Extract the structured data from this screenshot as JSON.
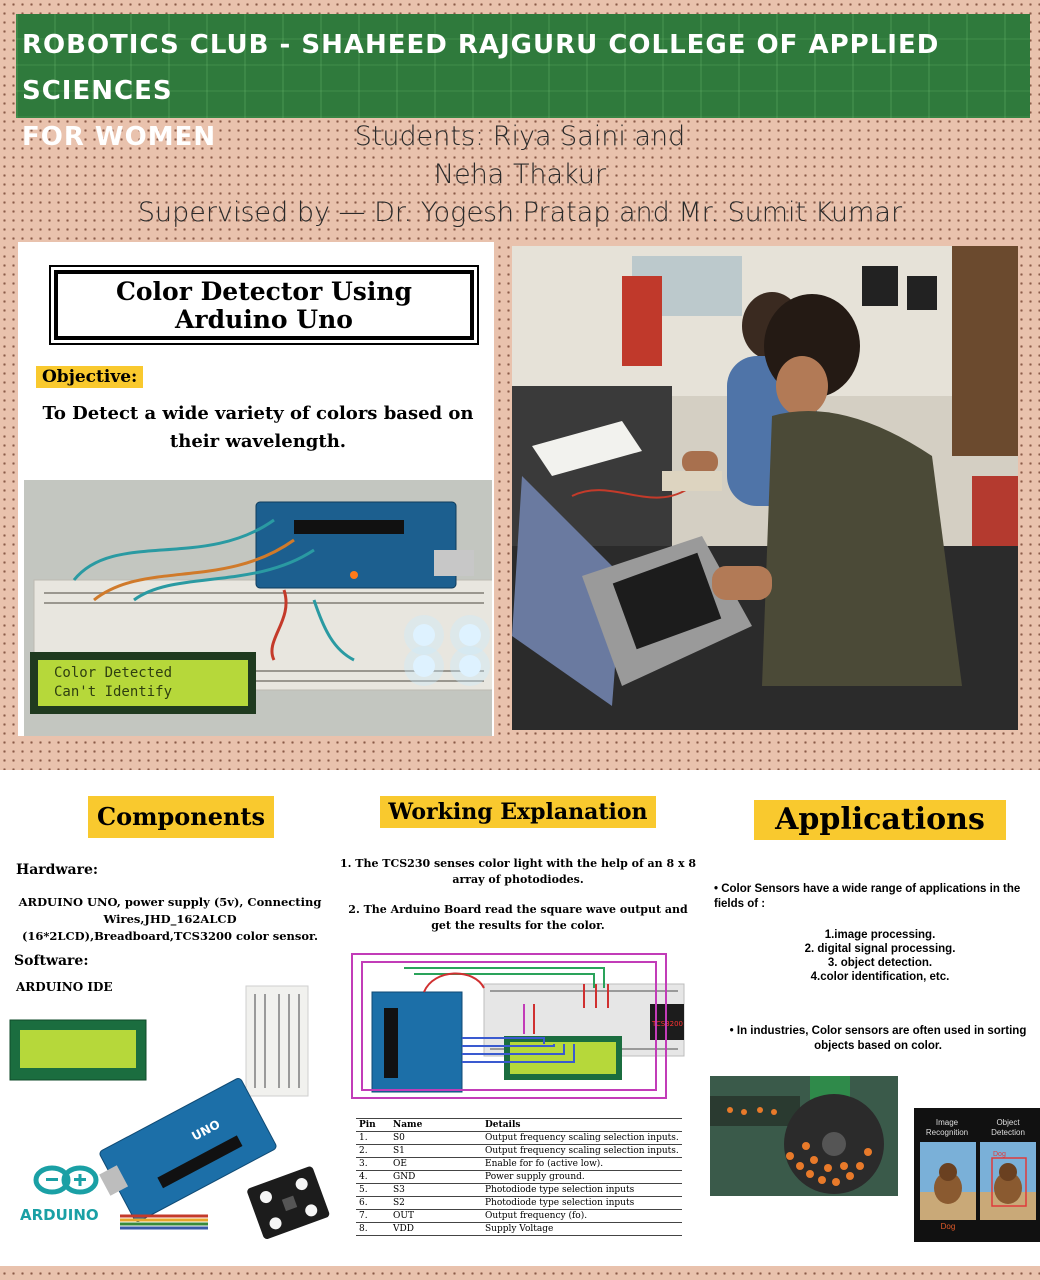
{
  "banner": {
    "line1": "ROBOTICS CLUB - SHAHEED RAJGURU COLLEGE OF APPLIED SCIENCES",
    "line2": "FOR WOMEN"
  },
  "credits": {
    "students_line1": "Students: Riya Saini and",
    "students_line2": "Neha Thakur",
    "supervised": "Supervised by — Dr. Yogesh Pratap and Mr. Sumit Kumar"
  },
  "project": {
    "title_line1": "Color Detector Using",
    "title_line2": "Arduino Uno",
    "objective_label": "Objective:",
    "objective_text": "To Detect a wide variety of colors based on their wavelength.",
    "lcd_line1": "Color Detected",
    "lcd_line2": "Can't Identify"
  },
  "components": {
    "heading": "Components",
    "hardware_label": "Hardware:",
    "hardware_text": "ARDUINO UNO, power supply (5v), Connecting Wires,JHD_162ALCD (16*2LCD),Breadboard,TCS3200 color sensor.",
    "software_label": "Software:",
    "software_text": "ARDUINO IDE",
    "arduino_logo_text": "ARDUINO",
    "board_label": "UNO"
  },
  "working": {
    "heading": "Working Explanation",
    "step1": "1. The TCS230 senses color light with the help of an 8 x 8 array of photodiodes.",
    "step2": "2. The Arduino Board read the square wave output and get the results for the color.",
    "sensor_label": "TCS3200",
    "table_headers": [
      "Pin",
      "Name",
      "Details"
    ],
    "table_rows": [
      [
        "1.",
        "S0",
        "Output frequency scaling selection inputs."
      ],
      [
        "2.",
        "S1",
        "Output frequency scaling selection inputs."
      ],
      [
        "3.",
        "OE",
        "Enable for fo (active low)."
      ],
      [
        "4.",
        "GND",
        "Power supply ground."
      ],
      [
        "5.",
        "S3",
        "Photodiode type selection inputs"
      ],
      [
        "6.",
        "S2",
        "Photodiode type selection inputs"
      ],
      [
        "7.",
        "OUT",
        "Output frequency (fo)."
      ],
      [
        "8.",
        "VDD",
        "Supply Voltage"
      ]
    ]
  },
  "applications": {
    "heading": "Applications",
    "bullet1": "• Color Sensors have a wide range of applications in the fields of :",
    "list": [
      "1.image processing.",
      "2. digital signal processing.",
      "3. object detection.",
      "4.color identification, etc."
    ],
    "bullet2": "• In industries, Color sensors are often used in sorting objects based on color.",
    "recog_label1": "Image",
    "recog_label2": "Recognition",
    "detect_label1": "Object",
    "detect_label2": "Detection",
    "dog_caption": "Dog",
    "dog_box_label": "Dog"
  },
  "colors": {
    "banner_green": "#2f7a3c",
    "highlight_yellow": "#f9c92e",
    "background_peach": "#e9c2ad",
    "lcd_green": "#b6d83a"
  }
}
